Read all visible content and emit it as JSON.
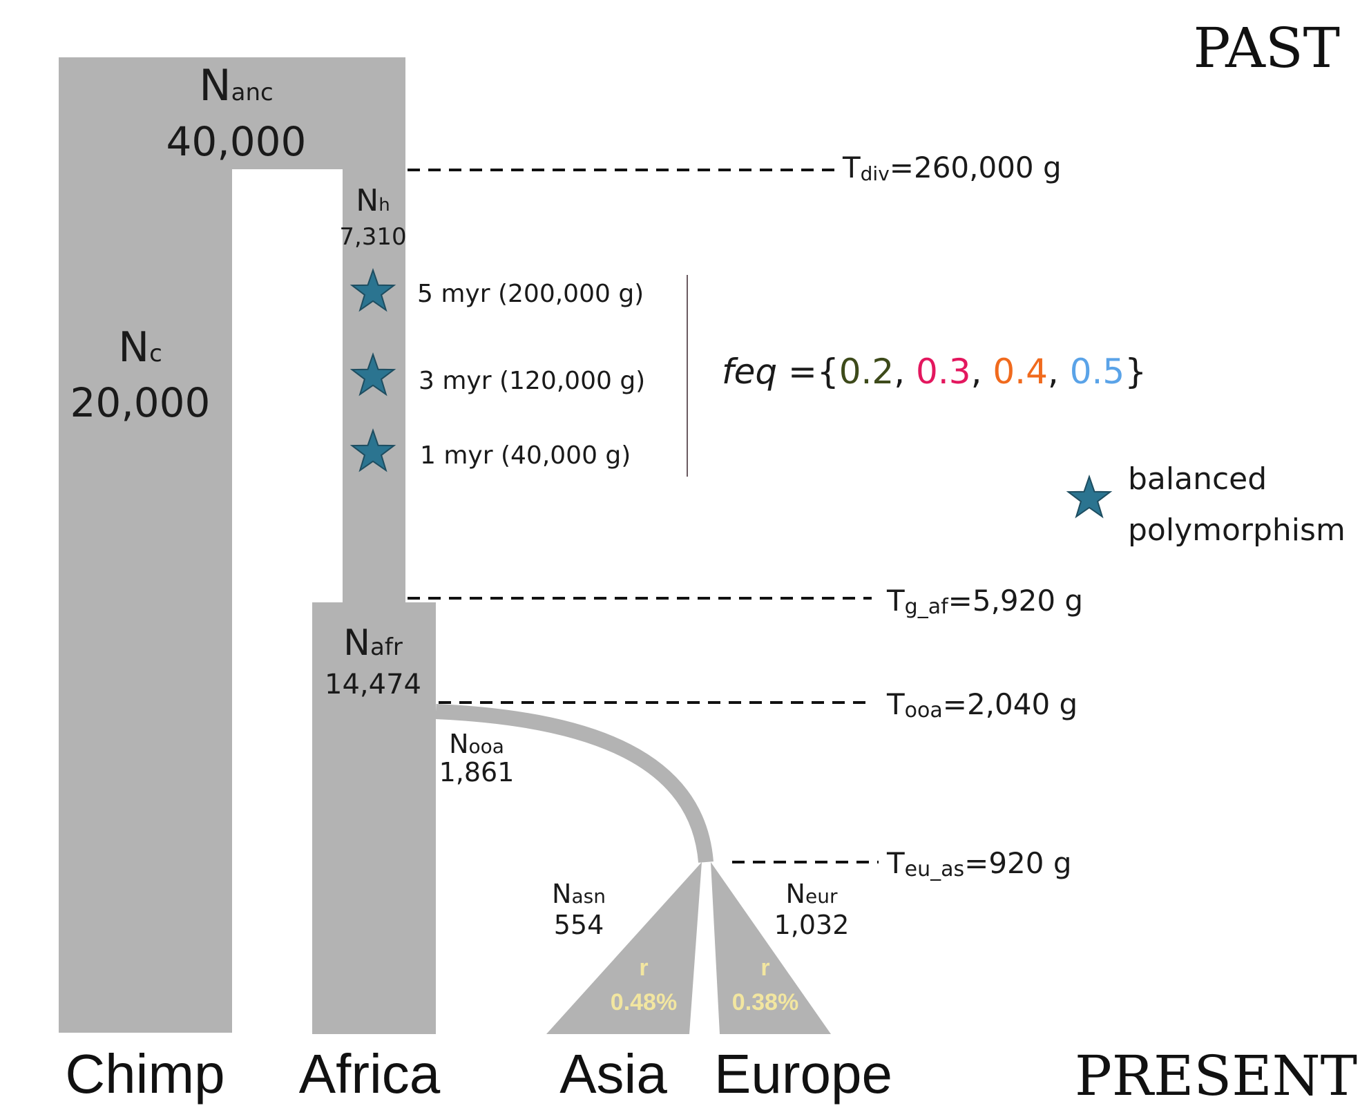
{
  "colors": {
    "population": "#b3b3b3",
    "star": "#2b7490",
    "star_stroke": "#1e4d60",
    "rate_text": "#f2e6a0",
    "feq_0": "#3d4a1a",
    "feq_1": "#e3175e",
    "feq_2": "#f06a1d",
    "feq_3": "#5aa3e8"
  },
  "axis": {
    "past": "PAST",
    "present": "PRESENT"
  },
  "populations": {
    "ancestral": {
      "name": "N",
      "sub": "anc",
      "size": "40,000"
    },
    "chimp": {
      "name": "N",
      "sub": "c",
      "size": "20,000",
      "label": "Chimp"
    },
    "human": {
      "name": "N",
      "sub": "h",
      "size": "7,310"
    },
    "africa": {
      "name": "N",
      "sub": "afr",
      "size": "14,474",
      "label": "Africa"
    },
    "out_of_africa": {
      "name": "N",
      "sub": "ooa",
      "size": "1,861"
    },
    "asia": {
      "name": "N",
      "sub": "asn",
      "size": "554",
      "label": "Asia",
      "rate_label": "r",
      "rate": "0.48%"
    },
    "europe": {
      "name": "N",
      "sub": "eur",
      "size": "1,032",
      "label": "Europe",
      "rate_label": "r",
      "rate": "0.38%"
    }
  },
  "times": [
    {
      "name": "T",
      "sub": "div",
      "value": "=260,000 g"
    },
    {
      "name": "T",
      "sub": "g_af",
      "value": "=5,920 g"
    },
    {
      "name": "T",
      "sub": "ooa",
      "value": "=2,040 g"
    },
    {
      "name": "T",
      "sub": "eu_as",
      "value": "=920  g"
    }
  ],
  "selection_ages": [
    "5 myr (200,000 g)",
    "3 myr (120,000 g)",
    "1 myr (40,000 g)"
  ],
  "feq": {
    "label": "feq",
    "eq_open": " ={",
    "values": [
      "0.2",
      "0.3",
      "0.4",
      "0.5"
    ],
    "sep": ", ",
    "close": "}"
  },
  "legend": {
    "line1": "balanced",
    "line2": "polymorphism",
    "icon": "star-icon"
  }
}
